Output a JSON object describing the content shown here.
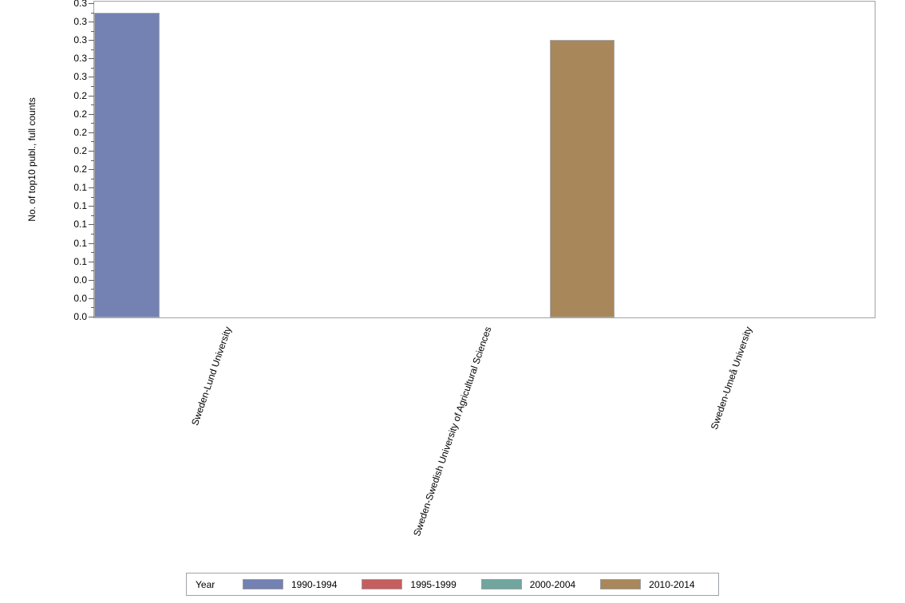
{
  "figure": {
    "background": "#ffffff",
    "frame_color": "#9EA3A8",
    "tick_color": "#606060",
    "text_color": "#000000",
    "bar_border_color": "#A9A9A9"
  },
  "chart_data": {
    "type": "bar",
    "title": "",
    "xlabel": "",
    "ylabel": "No. of top10 publ., full counts",
    "grid": false,
    "legend_title": "Year",
    "legend_position": "bottom",
    "categories": [
      "Sweden-Lund University",
      "Sweden-Swedish University of Agricultural Sciences",
      "Sweden-Umeå University"
    ],
    "series": [
      {
        "name": "1990-1994",
        "color": "#7381B3",
        "values": [
          0.33,
          0,
          0
        ]
      },
      {
        "name": "1995-1999",
        "color": "#C55E5E",
        "values": [
          0,
          0,
          0
        ]
      },
      {
        "name": "2000-2004",
        "color": "#70A69E",
        "values": [
          0,
          0,
          0
        ]
      },
      {
        "name": "2010-2014",
        "color": "#A8875B",
        "values": [
          0,
          0.3,
          0
        ]
      }
    ],
    "ylim": [
      0,
      0.34
    ],
    "ytick_values": [
      0,
      0.02,
      0.04,
      0.06,
      0.08,
      0.1,
      0.12,
      0.14,
      0.16,
      0.18,
      0.2,
      0.22,
      0.24,
      0.26,
      0.28,
      0.3,
      0.32,
      0.34
    ],
    "ytick_labels": [
      "0.0",
      "0.0",
      "0.0",
      "0.1",
      "0.1",
      "0.1",
      "0.1",
      "0.1",
      "0.2",
      "0.2",
      "0.2",
      "0.2",
      "0.2",
      "0.3",
      "0.3",
      "0.3",
      "0.3",
      "0.3"
    ],
    "minor_ticks": true
  }
}
